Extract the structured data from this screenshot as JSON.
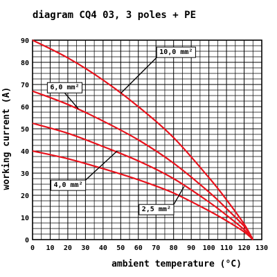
{
  "chart_data": {
    "type": "line",
    "title": "diagram CQ4 03, 3 poles + PE",
    "xlabel": "ambient temperature (°C)",
    "ylabel": "working current (A)",
    "xlim": [
      0,
      130
    ],
    "ylim": [
      0,
      90
    ],
    "x_ticks": [
      "0",
      "10",
      "20",
      "30",
      "40",
      "50",
      "60",
      "70",
      "80",
      "90",
      "100",
      "110",
      "120",
      "130"
    ],
    "y_ticks": [
      "0",
      "10",
      "20",
      "30",
      "40",
      "50",
      "60",
      "70",
      "80",
      "90"
    ],
    "grid": true,
    "line_color": "#e8121c",
    "series": [
      {
        "name": "10,0 mm²",
        "x": [
          0,
          20,
          40,
          60,
          80,
          100,
          110,
          120,
          125
        ],
        "y": [
          90,
          82,
          72,
          60,
          46,
          28,
          18,
          7,
          0
        ]
      },
      {
        "name": "6,0 mm²",
        "x": [
          0,
          20,
          40,
          60,
          80,
          100,
          110,
          120,
          125
        ],
        "y": [
          67,
          61,
          53.5,
          45,
          34.5,
          21.5,
          14,
          6,
          0
        ]
      },
      {
        "name": "4,0 mm²",
        "x": [
          0,
          20,
          40,
          60,
          80,
          100,
          110,
          120,
          125
        ],
        "y": [
          52.5,
          48,
          42,
          35.5,
          27.5,
          17,
          11,
          4.5,
          0
        ]
      },
      {
        "name": "2,5 mm²",
        "x": [
          0,
          20,
          40,
          60,
          80,
          100,
          110,
          120,
          125
        ],
        "y": [
          40,
          36.5,
          32,
          27,
          21,
          13,
          8.5,
          3.5,
          0
        ]
      }
    ]
  }
}
